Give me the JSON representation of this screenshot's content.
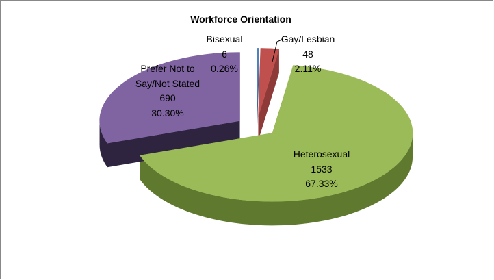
{
  "chart_data": {
    "type": "pie",
    "title": "Workforce Orientation",
    "categories": [
      "Bisexual",
      "Gay/Lesbian",
      "Heterosexual",
      "Prefer Not to Say/Not Stated"
    ],
    "values": [
      6,
      48,
      1533,
      690
    ],
    "percent_labels": [
      "0.26%",
      "2.11%",
      "67.33%",
      "30.30%"
    ],
    "colors": [
      "#4f81bd",
      "#c0504d",
      "#9bbb59",
      "#8064a2"
    ],
    "side_colors": [
      "#3a5f8c",
      "#8e3a38",
      "#5f7a2e",
      "#2e2440"
    ],
    "exploded": true,
    "style": "3d"
  }
}
